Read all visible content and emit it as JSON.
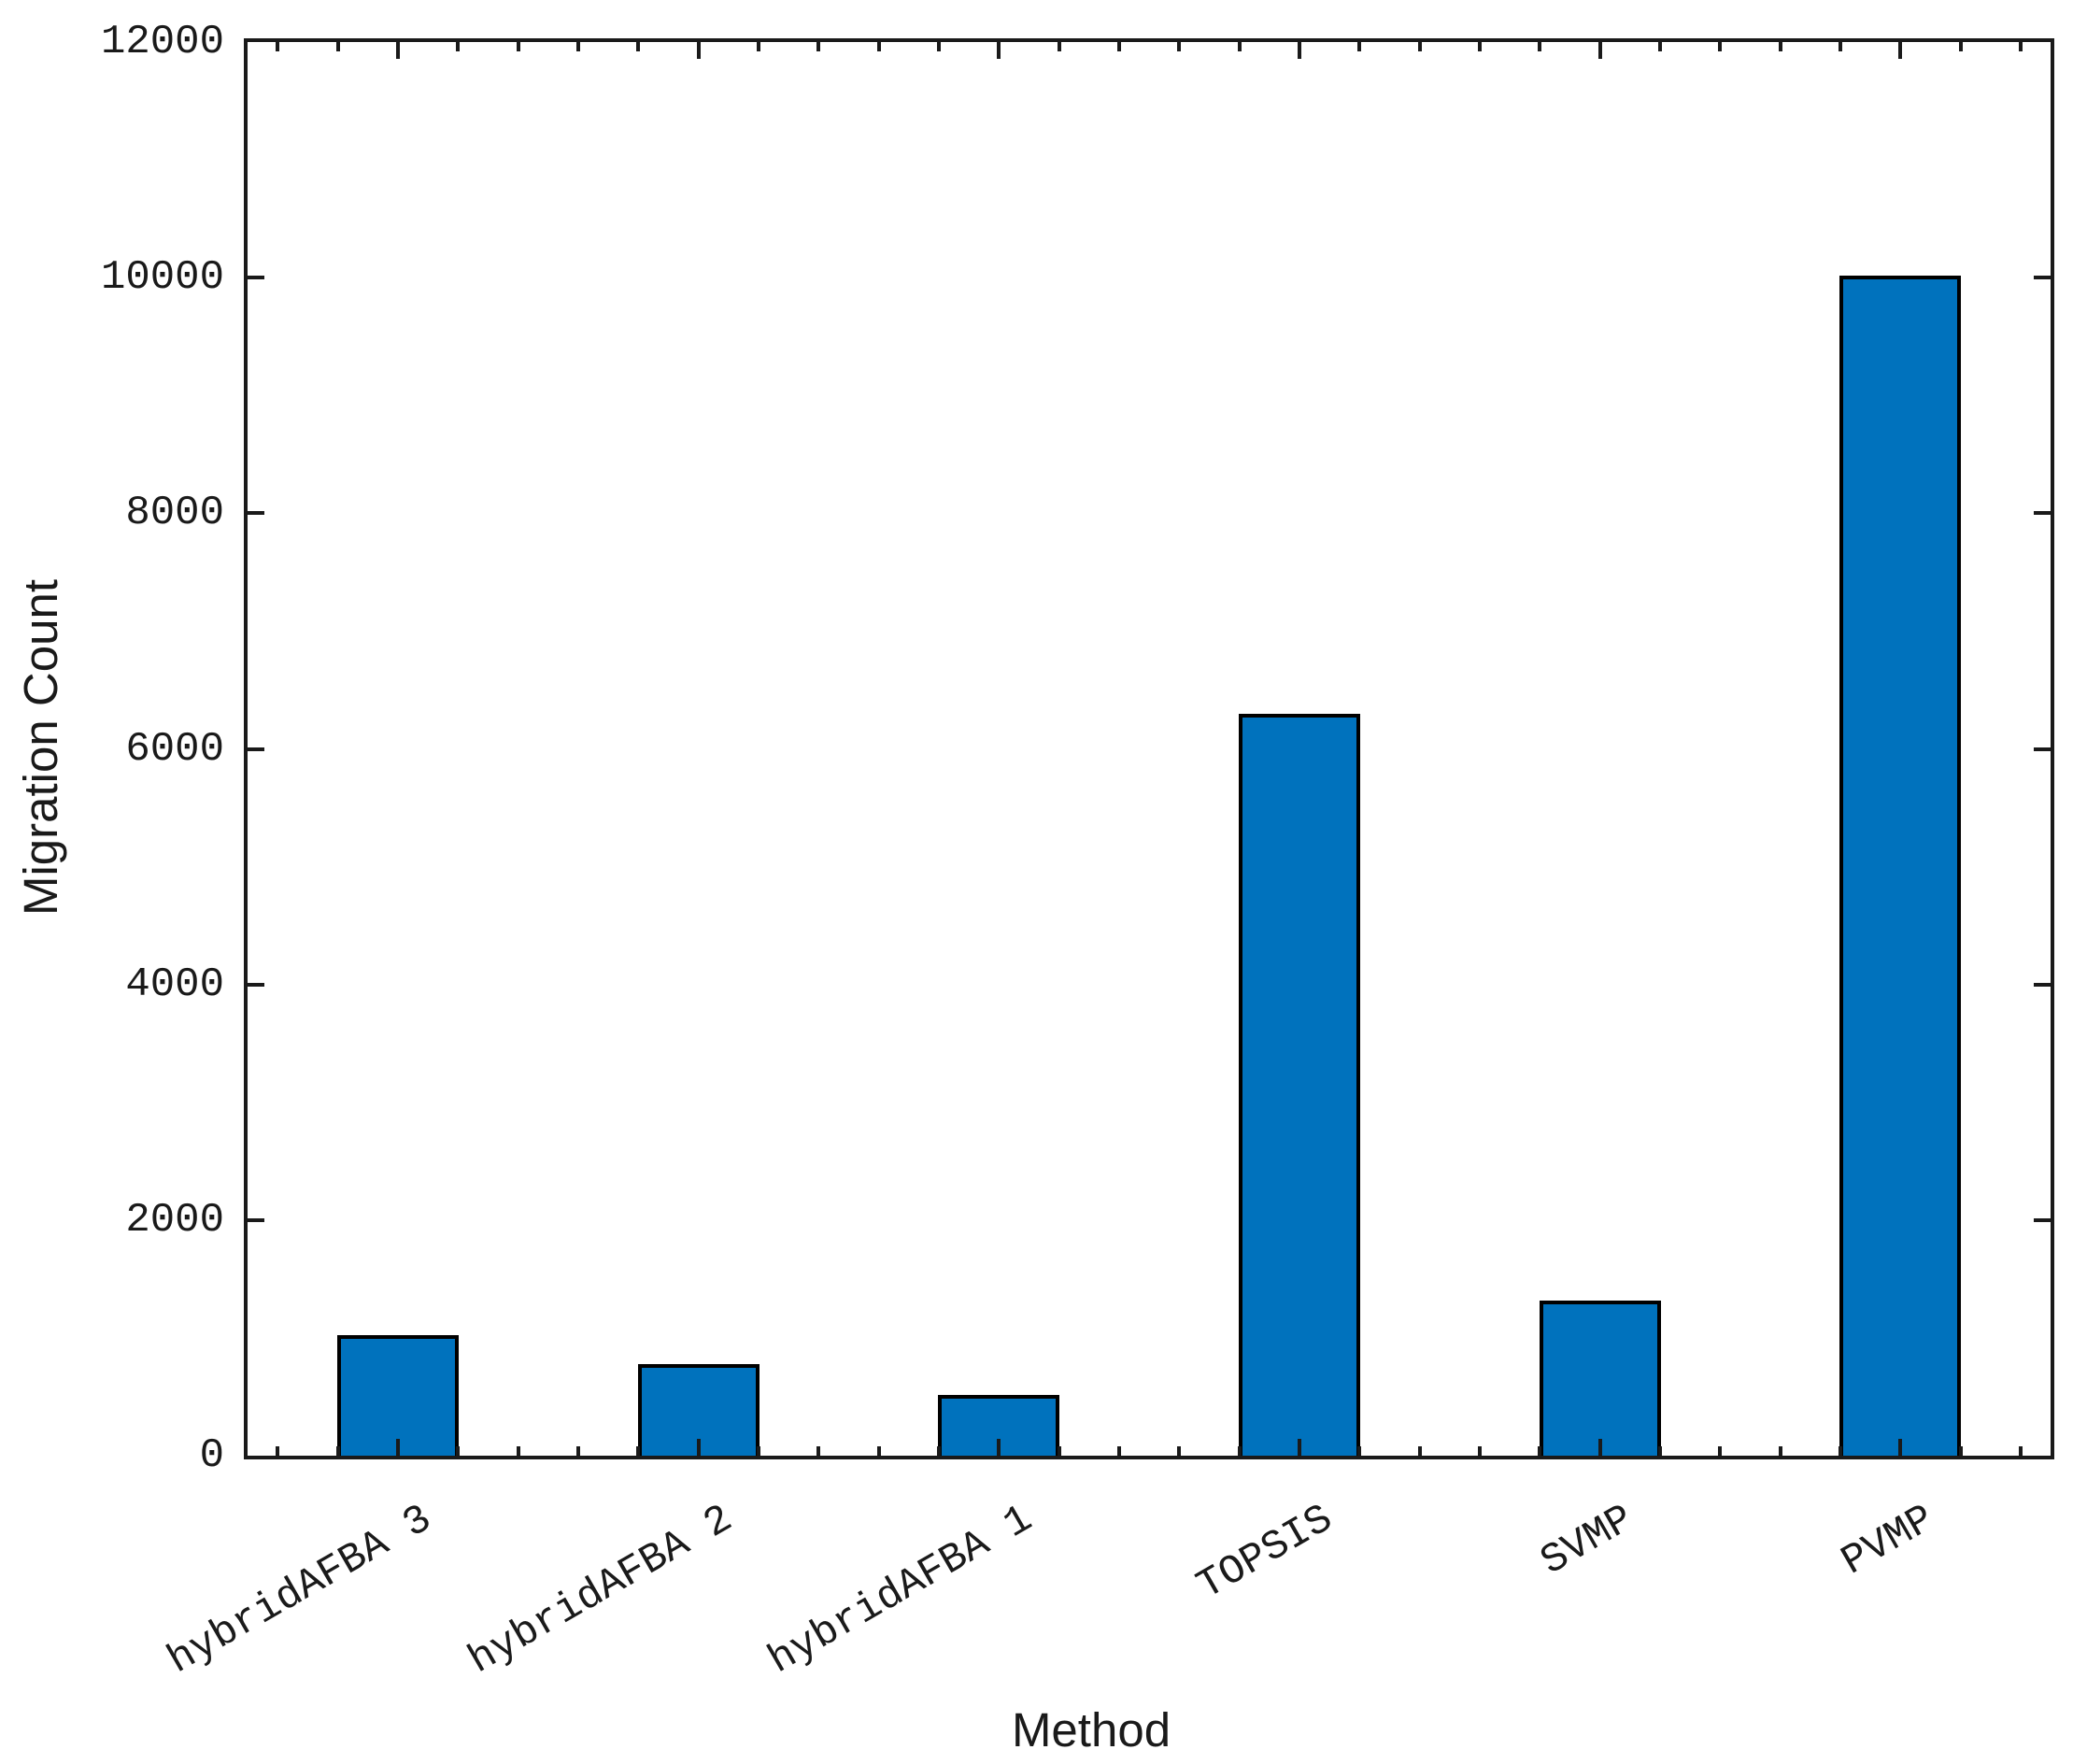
{
  "chart_data": {
    "type": "bar",
    "title": "",
    "categories": [
      "hybridAFBA 3",
      "hybridAFBA 2",
      "hybridAFBA 1",
      "TOPSIS",
      "SVMP",
      "PVMP"
    ],
    "values": [
      1020,
      780,
      515,
      6300,
      1320,
      10020
    ],
    "xlabel": "Method",
    "ylabel": "Migration Count",
    "ylim": [
      0,
      12000
    ],
    "yticks": [
      0,
      2000,
      4000,
      6000,
      8000,
      10000,
      12000
    ],
    "ytick_labels": [
      "0",
      "2000",
      "4000",
      "6000",
      "8000",
      "10000",
      "12000"
    ],
    "xlim_category_units": [
      0.5,
      6.5
    ],
    "x_minor_tick_step": 0.2,
    "xtick_rotation_deg": 30,
    "bar_width_category_units": 0.4,
    "grid": false,
    "legend": "none",
    "tick_style": "inward, mirrored on all four sides",
    "colors": {
      "bar_fill": "#0072BD",
      "bar_edge": "#000000",
      "axis": "#1a1a1a",
      "text": "#1a1a1a",
      "background": "#ffffff"
    }
  }
}
